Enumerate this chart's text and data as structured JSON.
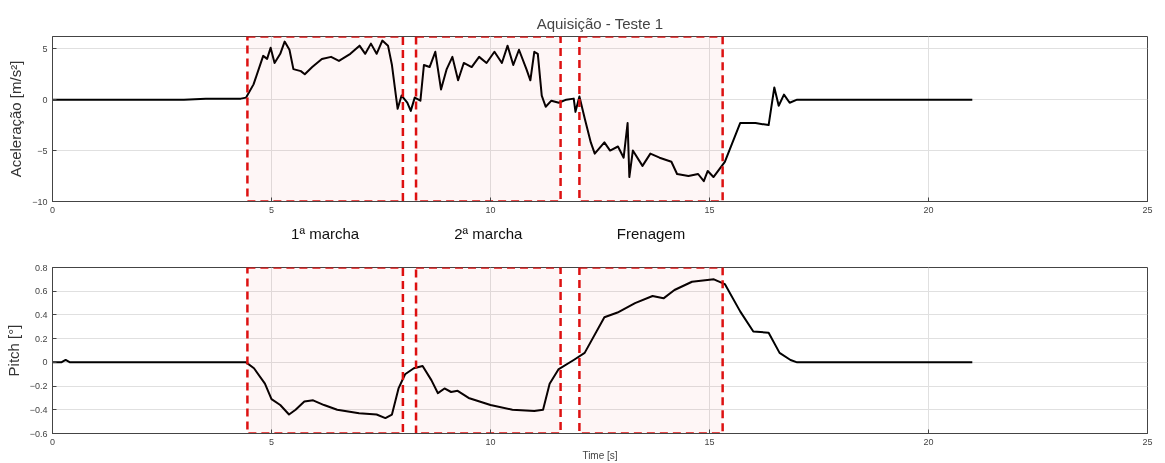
{
  "chart_data": [
    {
      "type": "line",
      "title": "Aquisição - Teste 1",
      "ylabel": "Aceleração [m/s²]",
      "xlim": [
        0,
        25
      ],
      "xticks": [
        0,
        5,
        10,
        15,
        20,
        25
      ],
      "ylim": [
        -10,
        6.2
      ],
      "yticks": [
        -10,
        -5,
        0,
        5
      ],
      "grid": true,
      "series": [
        {
          "color": "#000000",
          "x": [
            0,
            1,
            2,
            3,
            3.5,
            4,
            4.3,
            4.42,
            4.59,
            4.81,
            4.9,
            4.98,
            5.07,
            5.2,
            5.3,
            5.41,
            5.5,
            5.67,
            5.76,
            5.93,
            6.15,
            6.36,
            6.54,
            6.8,
            7.01,
            7.14,
            7.27,
            7.4,
            7.53,
            7.66,
            7.75,
            7.84,
            7.88,
            7.97,
            8.1,
            8.18,
            8.27,
            8.4,
            8.48,
            8.61,
            8.74,
            8.87,
            9.0,
            9.13,
            9.26,
            9.39,
            9.57,
            9.74,
            9.91,
            10.09,
            10.26,
            10.39,
            10.52,
            10.65,
            10.82,
            10.91,
            11.0,
            11.08,
            11.17,
            11.26,
            11.39,
            11.56,
            11.73,
            11.9,
            11.94,
            12.03,
            12.16,
            12.29,
            12.38,
            12.6,
            12.73,
            12.91,
            13.04,
            13.13,
            13.17,
            13.25,
            13.47,
            13.65,
            13.86,
            14.13,
            14.26,
            14.52,
            14.74,
            14.87,
            14.96,
            15.09,
            15.35,
            15.7,
            16.05,
            16.35,
            16.48,
            16.58,
            16.7,
            16.83,
            17.0,
            18,
            19,
            20,
            21
          ],
          "values": [
            0,
            0,
            0,
            0,
            0.1,
            0.1,
            0.1,
            0.2,
            1.5,
            4.3,
            4.0,
            5.1,
            3.6,
            4.5,
            5.7,
            4.9,
            3.0,
            2.8,
            2.5,
            3.2,
            4.0,
            4.2,
            3.8,
            4.5,
            5.3,
            4.5,
            5.5,
            4.5,
            5.8,
            5.3,
            3.4,
            0.4,
            -0.9,
            0.4,
            -0.3,
            -1.1,
            0.2,
            -0.1,
            3.4,
            3.2,
            4.7,
            1.0,
            3.0,
            4.2,
            1.9,
            3.6,
            3.2,
            4.2,
            3.6,
            4.7,
            3.6,
            5.3,
            3.4,
            4.9,
            3.0,
            1.9,
            4.7,
            4.5,
            0.4,
            -0.7,
            -0.1,
            -0.3,
            0.0,
            0.1,
            -1.2,
            0.3,
            -2.0,
            -4.2,
            -5.3,
            -4.2,
            -5.0,
            -4.6,
            -5.7,
            -2.3,
            -7.6,
            -5.0,
            -6.5,
            -5.3,
            -5.7,
            -6.1,
            -7.3,
            -7.5,
            -7.3,
            -8.0,
            -7.0,
            -7.6,
            -6.1,
            -2.3,
            -2.3,
            -2.5,
            1.2,
            -0.6,
            0.5,
            -0.3,
            0,
            0,
            0,
            0,
            0
          ]
        }
      ],
      "bands": [
        {
          "axis": "x",
          "from": 4.45,
          "to": 8.0,
          "label": "1ª marcha",
          "color": "#dd1111"
        },
        {
          "axis": "x",
          "from": 8.3,
          "to": 11.6,
          "label": "2ª marcha",
          "color": "#dd1111"
        },
        {
          "axis": "x",
          "from": 12.03,
          "to": 15.3,
          "label": "Frenagem",
          "color": "#dd1111"
        }
      ]
    },
    {
      "type": "line",
      "xlabel": "Time [s]",
      "ylabel": "Pitch [°]",
      "xlim": [
        0,
        25
      ],
      "xticks": [
        0,
        5,
        10,
        15,
        20,
        25
      ],
      "ylim": [
        -0.6,
        0.8
      ],
      "yticks": [
        -0.6,
        -0.4,
        -0.2,
        0,
        0.2,
        0.4,
        0.6,
        0.8
      ],
      "grid": true,
      "series": [
        {
          "color": "#000000",
          "x": [
            0,
            0.2,
            0.3,
            0.4,
            1,
            2,
            3,
            4,
            4.42,
            4.6,
            4.85,
            5.0,
            5.2,
            5.4,
            5.55,
            5.75,
            5.95,
            6.2,
            6.5,
            7.0,
            7.4,
            7.6,
            7.75,
            7.9,
            8.05,
            8.25,
            8.45,
            8.65,
            8.8,
            8.95,
            9.1,
            9.25,
            9.5,
            10.0,
            10.5,
            11.0,
            11.2,
            11.35,
            11.55,
            11.9,
            12.15,
            12.6,
            12.9,
            13.3,
            13.7,
            13.95,
            14.2,
            14.6,
            15.1,
            15.35,
            15.7,
            16.0,
            16.35,
            16.6,
            16.85,
            17.0,
            18,
            19,
            20,
            21
          ],
          "values": [
            0,
            0,
            0.02,
            0,
            0,
            0,
            0,
            0,
            0,
            -0.05,
            -0.18,
            -0.31,
            -0.36,
            -0.44,
            -0.4,
            -0.33,
            -0.32,
            -0.36,
            -0.4,
            -0.43,
            -0.44,
            -0.47,
            -0.44,
            -0.22,
            -0.1,
            -0.05,
            -0.03,
            -0.15,
            -0.26,
            -0.22,
            -0.25,
            -0.24,
            -0.3,
            -0.36,
            -0.4,
            -0.41,
            -0.4,
            -0.18,
            -0.06,
            0.02,
            0.08,
            0.38,
            0.42,
            0.5,
            0.56,
            0.54,
            0.61,
            0.68,
            0.7,
            0.66,
            0.43,
            0.26,
            0.25,
            0.08,
            0.02,
            0,
            0,
            0,
            0,
            0
          ]
        }
      ],
      "bands": [
        {
          "axis": "x",
          "from": 4.45,
          "to": 8.0,
          "color": "#dd1111"
        },
        {
          "axis": "x",
          "from": 8.3,
          "to": 11.6,
          "color": "#dd1111"
        },
        {
          "axis": "x",
          "from": 12.03,
          "to": 15.3,
          "color": "#dd1111"
        }
      ]
    }
  ]
}
